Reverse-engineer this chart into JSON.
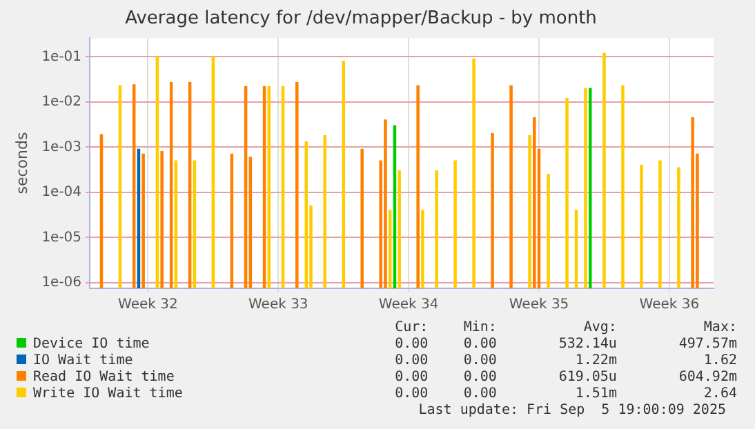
{
  "chart_data": {
    "type": "bar",
    "title": "Average latency for /dev/mapper/Backup - by month",
    "ylabel": "seconds",
    "log": "y",
    "grid": true,
    "legend": "bottom",
    "categories": [
      null,
      null,
      null,
      null,
      null,
      null,
      null,
      null,
      null,
      null,
      null,
      null,
      "Week 32",
      null,
      null,
      null,
      null,
      null,
      null,
      null,
      null,
      null,
      null,
      null,
      null,
      null,
      null,
      null,
      null,
      null,
      null,
      null,
      null,
      null,
      null,
      null,
      null,
      null,
      null,
      null,
      "Week 33",
      null,
      null,
      null,
      null,
      null,
      null,
      null,
      null,
      null,
      null,
      null,
      null,
      null,
      null,
      null,
      null,
      null,
      null,
      null,
      null,
      null,
      null,
      null,
      null,
      null,
      null,
      null,
      "Week 34",
      null,
      null,
      null,
      null,
      null,
      null,
      null,
      null,
      null,
      null,
      null,
      null,
      null,
      null,
      null,
      null,
      null,
      null,
      null,
      null,
      null,
      null,
      null,
      null,
      null,
      null,
      null,
      "Week 35",
      null,
      null,
      null,
      null,
      null,
      null,
      null,
      null,
      null,
      null,
      null,
      null,
      null,
      null,
      null,
      null,
      null,
      null,
      null,
      null,
      null,
      null,
      null,
      null,
      null,
      null,
      null,
      "Week 36",
      null,
      null,
      null,
      null,
      null,
      null,
      null,
      null,
      null
    ],
    "ylim": [
      7.5e-07,
      0.26
    ],
    "yticks": [
      {
        "value": 1e-06,
        "label": "1e-06"
      },
      {
        "value": 1e-05,
        "label": "1e-05"
      },
      {
        "value": 0.0001,
        "label": "1e-04"
      },
      {
        "value": 0.001,
        "label": "1e-03"
      },
      {
        "value": 0.01,
        "label": "1e-02"
      },
      {
        "value": 0.1,
        "label": "1e-01"
      }
    ],
    "series": [
      {
        "name": "Device IO time",
        "color": "#00cc00",
        "values": [
          null,
          null,
          null,
          null,
          null,
          null,
          null,
          null,
          null,
          null,
          null,
          null,
          null,
          null,
          null,
          null,
          null,
          null,
          null,
          null,
          null,
          null,
          null,
          null,
          null,
          null,
          null,
          null,
          null,
          null,
          null,
          null,
          null,
          null,
          null,
          null,
          null,
          null,
          null,
          null,
          null,
          null,
          null,
          null,
          null,
          null,
          null,
          null,
          null,
          null,
          null,
          null,
          null,
          null,
          null,
          null,
          null,
          null,
          null,
          null,
          null,
          null,
          null,
          null,
          null,
          0.003,
          null,
          null,
          null,
          null,
          null,
          null,
          null,
          null,
          null,
          null,
          null,
          null,
          null,
          null,
          null,
          null,
          null,
          null,
          null,
          null,
          null,
          null,
          null,
          null,
          null,
          null,
          null,
          null,
          null,
          null,
          null,
          null,
          null,
          null,
          null,
          null,
          null,
          null,
          null,
          null,
          null,
          0.02,
          null,
          null,
          null,
          null,
          null,
          null,
          null,
          null,
          null,
          null,
          null,
          null,
          null,
          null,
          null,
          null,
          null,
          null,
          null,
          null,
          null,
          null,
          null,
          null,
          null,
          null
        ]
      },
      {
        "name": "IO Wait time",
        "color": "#0066b3",
        "values": [
          null,
          null,
          null,
          null,
          null,
          null,
          null,
          null,
          null,
          null,
          0.0009,
          null,
          null,
          null,
          null,
          null,
          null,
          null,
          null,
          null,
          null,
          null,
          null,
          null,
          null,
          null,
          null,
          null,
          null,
          null,
          null,
          null,
          null,
          null,
          null,
          null,
          null,
          null,
          null,
          null,
          null,
          null,
          null,
          null,
          null,
          null,
          null,
          null,
          null,
          null,
          null,
          null,
          null,
          null,
          null,
          null,
          null,
          null,
          null,
          null,
          null,
          null,
          null,
          null,
          null,
          null,
          null,
          null,
          null,
          null,
          null,
          null,
          null,
          null,
          null,
          null,
          null,
          null,
          null,
          null,
          null,
          null,
          null,
          null,
          null,
          null,
          null,
          null,
          null,
          null,
          null,
          null,
          null,
          null,
          null,
          null,
          null,
          null,
          null,
          null,
          null,
          null,
          null,
          null,
          null,
          null,
          null,
          null,
          null,
          null,
          null,
          null,
          null,
          null,
          null,
          null,
          null,
          null,
          null,
          null,
          null,
          null,
          null,
          null,
          null,
          null,
          null,
          null,
          null,
          null,
          null,
          null,
          null,
          null
        ]
      },
      {
        "name": "Read IO Wait time",
        "color": "#ff8000",
        "values": [
          null,
          null,
          0.0019,
          null,
          null,
          null,
          null,
          null,
          null,
          0.024,
          null,
          0.0007,
          null,
          null,
          null,
          0.0008,
          null,
          0.027,
          null,
          null,
          null,
          0.027,
          null,
          null,
          null,
          null,
          null,
          null,
          null,
          null,
          0.0007,
          null,
          null,
          0.022,
          0.0006,
          null,
          null,
          0.022,
          null,
          null,
          null,
          null,
          null,
          null,
          0.027,
          null,
          null,
          null,
          null,
          null,
          null,
          null,
          null,
          null,
          null,
          null,
          null,
          null,
          0.0009,
          null,
          null,
          null,
          0.0005,
          0.004,
          null,
          null,
          null,
          null,
          null,
          null,
          0.023,
          null,
          null,
          null,
          null,
          null,
          null,
          null,
          null,
          null,
          null,
          null,
          null,
          null,
          null,
          null,
          0.002,
          null,
          null,
          null,
          0.023,
          null,
          null,
          null,
          null,
          0.0045,
          0.0009,
          null,
          null,
          null,
          null,
          null,
          null,
          null,
          null,
          null,
          null,
          null,
          null,
          null,
          null,
          null,
          null,
          null,
          null,
          null,
          null,
          null,
          null,
          null,
          null,
          null,
          null,
          null,
          null,
          null,
          null,
          null,
          null,
          0.0045,
          0.0007,
          null,
          null,
          null
        ]
      },
      {
        "name": "Write IO Wait time",
        "color": "#ffcc00",
        "values": [
          null,
          null,
          null,
          null,
          null,
          null,
          0.023,
          null,
          null,
          null,
          null,
          null,
          null,
          null,
          0.1,
          null,
          null,
          null,
          0.0005,
          null,
          null,
          null,
          0.0005,
          null,
          null,
          null,
          0.1,
          null,
          null,
          null,
          null,
          null,
          null,
          null,
          null,
          null,
          null,
          null,
          0.022,
          null,
          null,
          0.022,
          null,
          null,
          null,
          null,
          0.0013,
          5e-05,
          null,
          null,
          0.0018,
          null,
          null,
          null,
          0.08,
          null,
          null,
          null,
          null,
          null,
          null,
          null,
          null,
          null,
          4e-05,
          null,
          0.0003,
          null,
          null,
          null,
          null,
          4e-05,
          null,
          null,
          0.0003,
          null,
          null,
          null,
          0.0005,
          null,
          null,
          null,
          0.09,
          null,
          null,
          null,
          null,
          null,
          null,
          null,
          null,
          null,
          null,
          null,
          0.0018,
          null,
          null,
          null,
          0.00025,
          null,
          null,
          null,
          0.012,
          null,
          4e-05,
          null,
          0.02,
          null,
          null,
          null,
          0.12,
          null,
          null,
          null,
          0.023,
          null,
          null,
          null,
          0.0004,
          null,
          null,
          null,
          0.0005,
          null,
          null,
          null,
          0.00035,
          null,
          null,
          null,
          null,
          null,
          null,
          null
        ]
      }
    ],
    "annotations": [
      "Cur:",
      "Min:",
      "Avg:",
      "Max:",
      "0.00",
      "0.00",
      "532.14u",
      "497.57m",
      "0.00",
      "0.00",
      "1.22m",
      "1.62",
      "0.00",
      "0.00",
      "619.05u",
      "604.92m",
      "0.00",
      "0.00",
      "1.51m",
      "2.64",
      "Last update: Fri Sep  5 19:00:09 2025"
    ]
  }
}
